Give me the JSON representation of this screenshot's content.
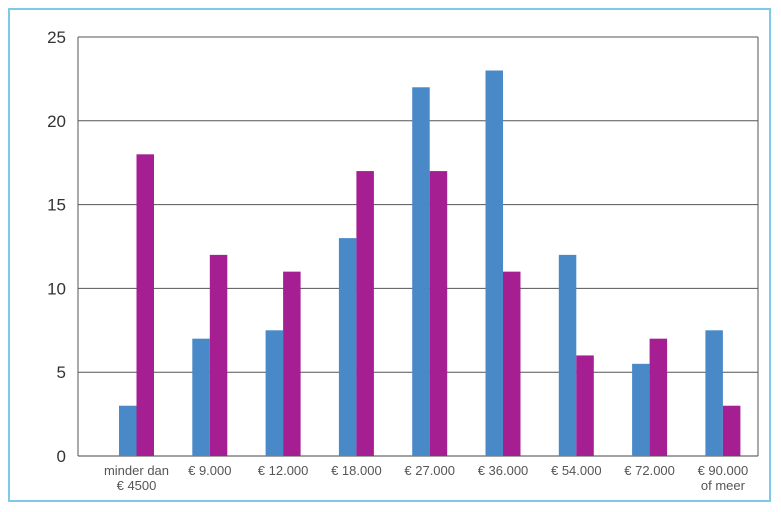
{
  "chart_data": {
    "type": "bar",
    "categories": [
      [
        "minder dan",
        "€ 4500"
      ],
      [
        "€ 9.000"
      ],
      [
        "€ 12.000"
      ],
      [
        "€ 18.000"
      ],
      [
        "€ 27.000"
      ],
      [
        "€ 36.000"
      ],
      [
        "€ 54.000"
      ],
      [
        "€ 72.000"
      ],
      [
        "€ 90.000",
        "of meer"
      ]
    ],
    "series": [
      {
        "color": "#4a89c8",
        "values": [
          3,
          7,
          7.5,
          13,
          22,
          23,
          12,
          5.5,
          7.5
        ]
      },
      {
        "color": "#a51f93",
        "values": [
          18,
          12,
          11,
          17,
          17,
          11,
          6,
          7,
          3
        ]
      }
    ],
    "ylim": [
      0,
      25
    ],
    "yticks": [
      0,
      5,
      10,
      15,
      20,
      25
    ],
    "grid": true,
    "title": "",
    "xlabel": "",
    "ylabel": ""
  }
}
